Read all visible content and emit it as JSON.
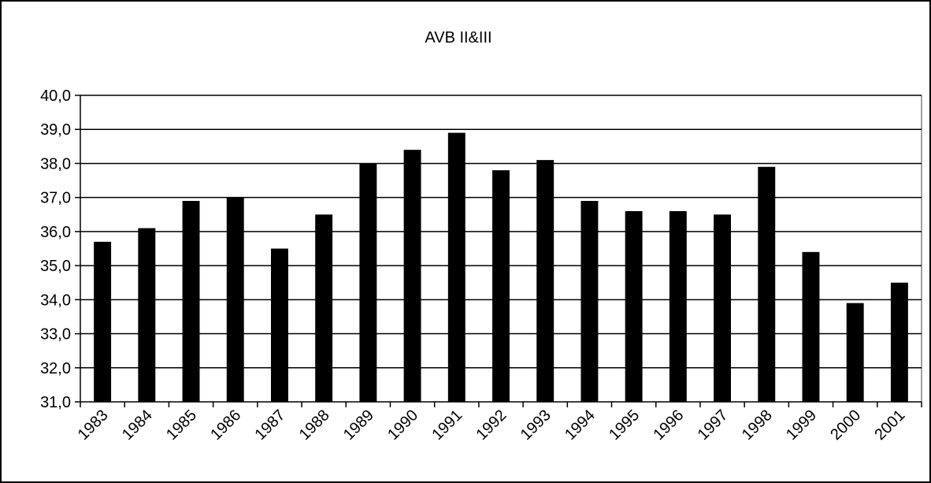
{
  "chart_data": {
    "type": "bar",
    "title": "AVB II&III",
    "xlabel": "",
    "ylabel": "",
    "categories": [
      "1983",
      "1984",
      "1985",
      "1986",
      "1987",
      "1988",
      "1989",
      "1990",
      "1991",
      "1992",
      "1993",
      "1994",
      "1995",
      "1996",
      "1997",
      "1998",
      "1999",
      "2000",
      "2001"
    ],
    "values": [
      35.7,
      36.1,
      36.9,
      37.0,
      35.5,
      36.5,
      38.0,
      38.4,
      38.9,
      37.8,
      38.1,
      36.9,
      36.6,
      36.6,
      36.5,
      37.9,
      35.4,
      33.9,
      34.5
    ],
    "ylim": [
      31,
      40
    ],
    "yticks": [
      "31,0",
      "32,0",
      "33,0",
      "34,0",
      "35,0",
      "36,0",
      "37,0",
      "38,0",
      "39,0",
      "40,0"
    ],
    "grid": true,
    "legend": "none",
    "colors": {
      "bar": "#000000",
      "grid": "#000000",
      "background": "#ffffff"
    }
  }
}
